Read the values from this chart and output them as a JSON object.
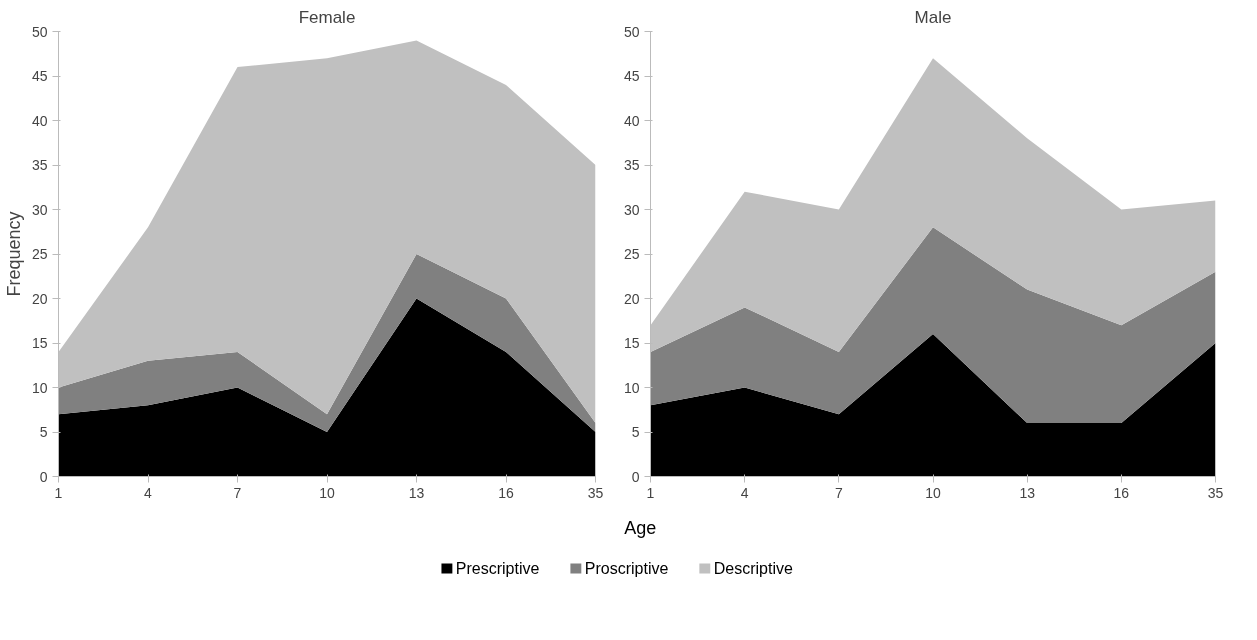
{
  "chart_data": [
    {
      "type": "area",
      "stacked": true,
      "title": "Female",
      "xlabel": "Age",
      "ylabel": "Frequency",
      "categories": [
        "1",
        "4",
        "7",
        "10",
        "13",
        "16",
        "35"
      ],
      "ylim": [
        0,
        50
      ],
      "yticks": [
        0,
        5,
        10,
        15,
        20,
        25,
        30,
        35,
        40,
        45,
        50
      ],
      "grid": false,
      "legend": "bottom",
      "series": [
        {
          "name": "Prescriptive",
          "color": "#000000",
          "values": [
            7,
            8,
            10,
            5,
            20,
            14,
            5
          ]
        },
        {
          "name": "Proscriptive",
          "color": "#808080",
          "values": [
            3,
            5,
            4,
            2,
            5,
            6,
            1
          ]
        },
        {
          "name": "Descriptive",
          "color": "#c0c0c0",
          "values": [
            4,
            15,
            32,
            40,
            24,
            24,
            29
          ]
        }
      ]
    },
    {
      "type": "area",
      "stacked": true,
      "title": "Male",
      "categories": [
        "1",
        "4",
        "7",
        "10",
        "13",
        "16",
        "35"
      ],
      "ylim": [
        0,
        50
      ],
      "yticks": [
        0,
        5,
        10,
        15,
        20,
        25,
        30,
        35,
        40,
        45,
        50
      ],
      "grid": false,
      "series": [
        {
          "color": "#000000",
          "values": [
            8,
            10,
            7,
            16,
            6,
            6,
            15
          ]
        },
        {
          "color": "#808080",
          "values": [
            6,
            9,
            7,
            12,
            15,
            11,
            8
          ]
        },
        {
          "color": "#c0c0c0",
          "values": [
            3,
            13,
            16,
            19,
            17,
            13,
            8
          ]
        }
      ]
    }
  ]
}
